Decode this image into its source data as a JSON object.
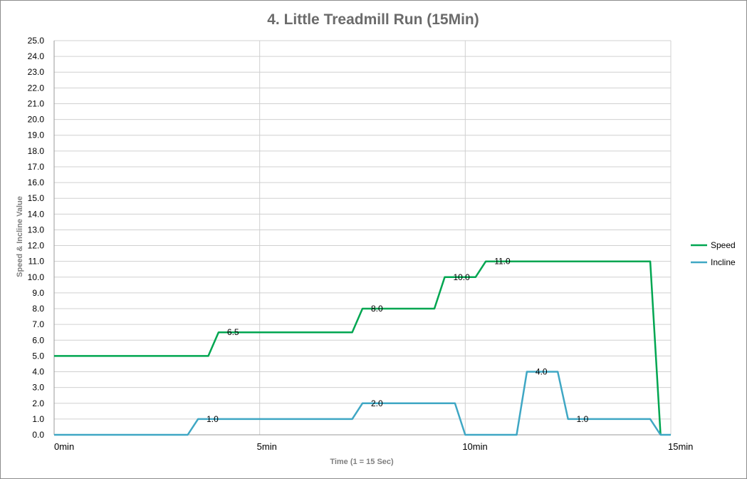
{
  "chart_data": {
    "type": "line",
    "title": "4. Little Treadmill Run (15Min)",
    "xlabel": "Time  (1 = 15 Sec)",
    "ylabel": "Speed  &  Incline Value",
    "xlim": [
      0,
      15
    ],
    "ylim": [
      0,
      25
    ],
    "y_ticks": [
      "0.0",
      "1.0",
      "2.0",
      "3.0",
      "4.0",
      "5.0",
      "6.0",
      "7.0",
      "8.0",
      "9.0",
      "10.0",
      "11.0",
      "12.0",
      "13.0",
      "14.0",
      "15.0",
      "16.0",
      "17.0",
      "18.0",
      "19.0",
      "20.0",
      "21.0",
      "22.0",
      "23.0",
      "24.0",
      "25.0"
    ],
    "x_ticks": [
      {
        "value": 0,
        "label": "0min"
      },
      {
        "value": 5,
        "label": "5min"
      },
      {
        "value": 10,
        "label": "10min"
      },
      {
        "value": 15,
        "label": "15min"
      }
    ],
    "grid": true,
    "legend_position": "right",
    "series": [
      {
        "name": "Speed",
        "color": "#00a651",
        "x": [
          0,
          3.75,
          4.0,
          7.25,
          7.5,
          9.25,
          9.5,
          10.25,
          10.5,
          14.5,
          14.75
        ],
        "y": [
          5.0,
          5.0,
          6.5,
          6.5,
          8.0,
          8.0,
          10.0,
          10.0,
          11.0,
          11.0,
          0.0
        ]
      },
      {
        "name": "Incline",
        "color": "#3fa7c4",
        "x": [
          0,
          3.25,
          3.5,
          7.25,
          7.5,
          9.75,
          10.0,
          11.25,
          11.5,
          12.25,
          12.5,
          14.5,
          14.75,
          15.0
        ],
        "y": [
          0.0,
          0.0,
          1.0,
          1.0,
          2.0,
          2.0,
          0.0,
          0.0,
          4.0,
          4.0,
          1.0,
          1.0,
          0.0,
          0.0
        ]
      }
    ],
    "data_labels": [
      {
        "text": "6.5",
        "x": 4.0,
        "y": 6.5
      },
      {
        "text": "8.0",
        "x": 7.5,
        "y": 8.0
      },
      {
        "text": "10.0",
        "x": 9.5,
        "y": 10.0
      },
      {
        "text": "11.0",
        "x": 10.5,
        "y": 11.0
      },
      {
        "text": "1.0",
        "x": 3.5,
        "y": 1.0
      },
      {
        "text": "2.0",
        "x": 7.5,
        "y": 2.0
      },
      {
        "text": "4.0",
        "x": 11.5,
        "y": 4.0
      },
      {
        "text": "1.0",
        "x": 12.5,
        "y": 1.0
      }
    ]
  }
}
